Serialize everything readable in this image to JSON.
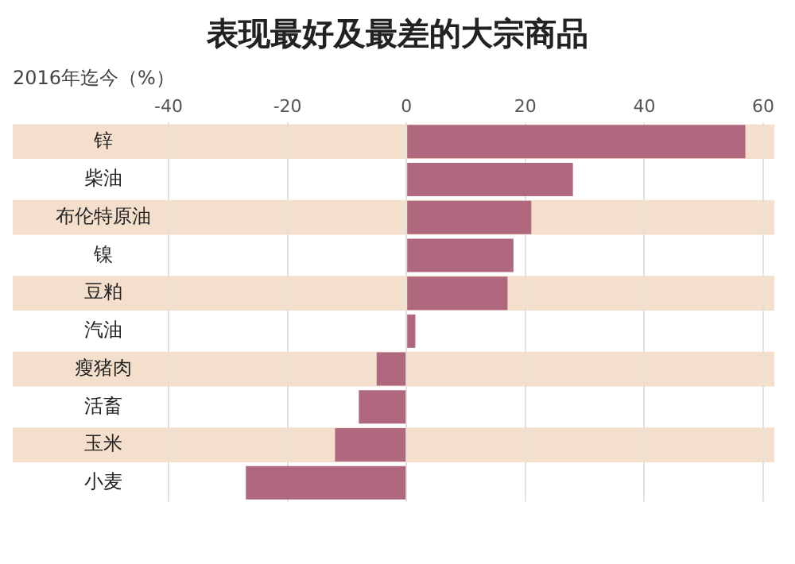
{
  "chart_data": {
    "type": "bar",
    "orientation": "horizontal",
    "title": "表现最好及最差的大宗商品",
    "xlabel": "2016年迄今（%）",
    "categories": [
      "锌",
      "柴油",
      "布伦特原油",
      "镍",
      "豆粕",
      "汽油",
      "瘦猪肉",
      "活畜",
      "玉米",
      "小麦"
    ],
    "values": [
      57,
      28,
      21,
      18,
      17,
      1.5,
      -5,
      -8,
      -12,
      -27
    ],
    "color": "#b0687e",
    "xlim": [
      -40,
      60
    ],
    "xticks": [
      -40,
      -20,
      0,
      20,
      40,
      60
    ],
    "grid": "x",
    "legend": false
  }
}
